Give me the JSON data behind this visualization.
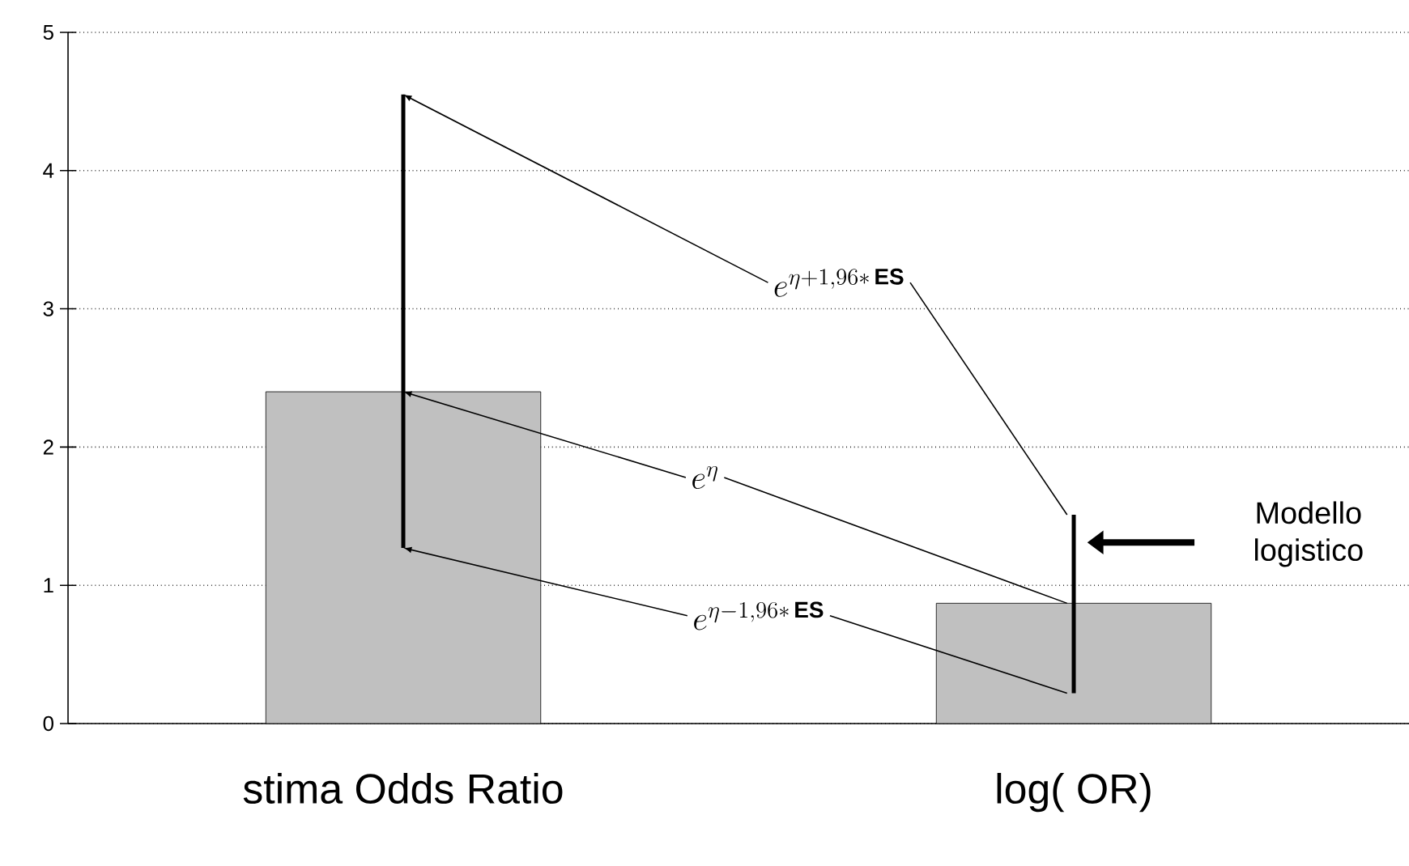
{
  "chart_data": {
    "type": "bar",
    "categories": [
      "stima Odds Ratio",
      "log( OR)"
    ],
    "values": [
      2.4,
      0.87
    ],
    "errors": [
      [
        1.27,
        4.55
      ],
      [
        0.22,
        1.51
      ]
    ],
    "color": "#c0c0c0",
    "ylim": [
      0,
      5
    ],
    "yticks": [
      0,
      1,
      2,
      3,
      4,
      5
    ],
    "grid": "y",
    "annotations": [
      "e^{\\eta+1{,}96*\\,\\mathbf{ES}}",
      {
        "text": "e^{\\eta}",
        "x": "stima Odds Ratio",
        "y": 2.4
      },
      "e^{\\eta-1{,}96*\\,\\mathbf{ES}}",
      "Modello logistico"
    ]
  }
}
